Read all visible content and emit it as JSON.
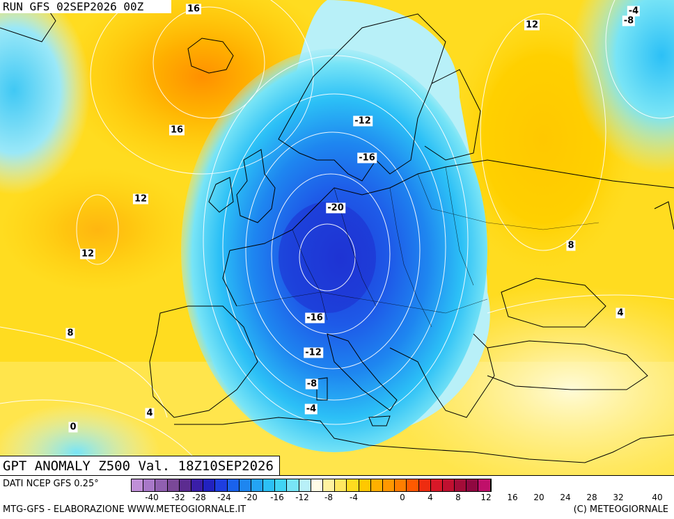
{
  "header": {
    "run_label": "RUN GFS 02SEP2026 00Z"
  },
  "title": {
    "text": "GPT ANOMALY Z500 Val. 18Z10SEP2026"
  },
  "footer": {
    "source": "DATI NCEP GFS 0.25°",
    "credit_left": "MTG-GFS - ELABORAZIONE WWW.METEOGIORNALE.IT",
    "credit_right": "(C) METEOGIORNALE"
  },
  "contour_labels": [
    {
      "text": "16"
    },
    {
      "text": "16"
    },
    {
      "text": "12"
    },
    {
      "text": "12"
    },
    {
      "text": "8"
    },
    {
      "text": "4"
    },
    {
      "text": "0"
    },
    {
      "text": "-12"
    },
    {
      "text": "-16"
    },
    {
      "text": "-20"
    },
    {
      "text": "-16"
    },
    {
      "text": "-12"
    },
    {
      "text": "-8"
    },
    {
      "text": "-4"
    },
    {
      "text": "12"
    },
    {
      "text": "-4"
    },
    {
      "text": "-8"
    },
    {
      "text": "8"
    },
    {
      "text": "4"
    }
  ],
  "scale": {
    "colors": [
      "#c090d8",
      "#a878c8",
      "#9060b0",
      "#7a4898",
      "#5c2c90",
      "#3a1ea8",
      "#2222c0",
      "#1e3ee0",
      "#1a62ec",
      "#1e86f0",
      "#24a4f4",
      "#2cc0f6",
      "#40d4f4",
      "#78e4f6",
      "#b8f0f8",
      "#fffbe6",
      "#fff2a0",
      "#ffe860",
      "#ffdc20",
      "#ffc800",
      "#ffb000",
      "#ff9800",
      "#ff7e00",
      "#ff5a00",
      "#ee2c10",
      "#d81828",
      "#c01030",
      "#a40c38",
      "#900840",
      "#c0106a"
    ],
    "ticks": [
      "-40",
      "-32",
      "-28",
      "-24",
      "-20",
      "-16",
      "-12",
      "-8",
      "-4",
      "0",
      "4",
      "8",
      "12",
      "16",
      "20",
      "24",
      "28",
      "32",
      "40"
    ]
  },
  "colors": {
    "land_line": "#000000",
    "contour_line": "#ffffff"
  }
}
